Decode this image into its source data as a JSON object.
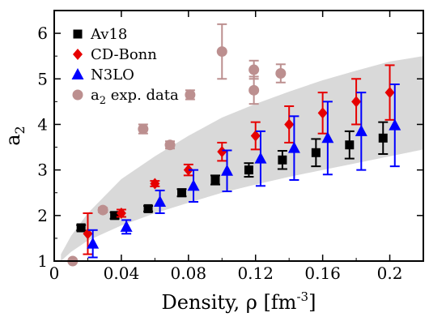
{
  "chart_data": {
    "type": "scatter",
    "title": "",
    "xlabel": "Density, ρ [fm",
    "xlabel_sup": "-3",
    "xlabel_end": "]",
    "ylabel": "a",
    "ylabel_sub": "2",
    "xlim": [
      0,
      0.22
    ],
    "ylim": [
      1,
      6.5
    ],
    "xticks": [
      0,
      0.04,
      0.08,
      0.12,
      0.16,
      0.2
    ],
    "xtick_labels": [
      "0",
      "0.04",
      "0.08",
      "0.12",
      "0.16",
      "0.2"
    ],
    "yticks": [
      1,
      2,
      3,
      4,
      5,
      6
    ],
    "ytick_labels": [
      "1",
      "2",
      "3",
      "4",
      "5",
      "6"
    ],
    "grid": false,
    "legend_position": "top-left",
    "band": {
      "color": "#d9d9d9",
      "x": [
        0.004,
        0.01,
        0.02,
        0.04,
        0.06,
        0.08,
        0.1,
        0.12,
        0.14,
        0.16,
        0.18,
        0.2,
        0.22
      ],
      "lower": [
        1.0,
        1.2,
        1.45,
        1.78,
        2.05,
        2.28,
        2.5,
        2.68,
        2.85,
        3.0,
        3.15,
        3.3,
        3.45
      ],
      "upper": [
        1.15,
        1.55,
        2.05,
        2.8,
        3.3,
        3.75,
        4.15,
        4.45,
        4.72,
        4.97,
        5.18,
        5.38,
        5.5
      ]
    },
    "series": [
      {
        "name": "Av18",
        "marker": "square",
        "color": "#000000",
        "x": [
          0.016,
          0.036,
          0.056,
          0.076,
          0.096,
          0.116,
          0.136,
          0.156,
          0.176,
          0.196
        ],
        "y": [
          1.73,
          2.0,
          2.15,
          2.5,
          2.78,
          3.0,
          3.22,
          3.38,
          3.55,
          3.7
        ],
        "err": [
          0.06,
          0.07,
          0.06,
          0.08,
          0.1,
          0.15,
          0.2,
          0.3,
          0.3,
          0.35
        ]
      },
      {
        "name": "CD-Bonn",
        "marker": "diamond",
        "color": "#e60000",
        "x": [
          0.02,
          0.04,
          0.06,
          0.08,
          0.1,
          0.12,
          0.14,
          0.16,
          0.18,
          0.2
        ],
        "y": [
          1.6,
          2.05,
          2.7,
          3.0,
          3.4,
          3.75,
          4.0,
          4.25,
          4.5,
          4.7
        ],
        "err": [
          0.45,
          0.08,
          0.06,
          0.12,
          0.2,
          0.3,
          0.4,
          0.45,
          0.5,
          0.6
        ]
      },
      {
        "name": "N3LO",
        "marker": "triangle",
        "color": "#0000ff",
        "x": [
          0.023,
          0.043,
          0.063,
          0.083,
          0.103,
          0.123,
          0.143,
          0.163,
          0.183,
          0.203
        ],
        "y": [
          1.38,
          1.75,
          2.3,
          2.65,
          2.98,
          3.25,
          3.48,
          3.7,
          3.85,
          3.98
        ],
        "err": [
          0.3,
          0.15,
          0.25,
          0.35,
          0.45,
          0.6,
          0.7,
          0.8,
          0.85,
          0.9
        ]
      },
      {
        "name": "a",
        "name_sub": "2",
        "name_end": " exp. data",
        "marker": "circle",
        "color": "#bc8f8f",
        "x": [
          0.011,
          0.029,
          0.053,
          0.069,
          0.081,
          0.1,
          0.119,
          0.119,
          0.135
        ],
        "y": [
          1.0,
          2.12,
          3.9,
          3.55,
          4.65,
          5.6,
          5.2,
          4.75,
          5.12
        ],
        "err": [
          0.02,
          0.05,
          0.1,
          0.08,
          0.1,
          0.6,
          0.2,
          0.3,
          0.2
        ]
      }
    ]
  }
}
